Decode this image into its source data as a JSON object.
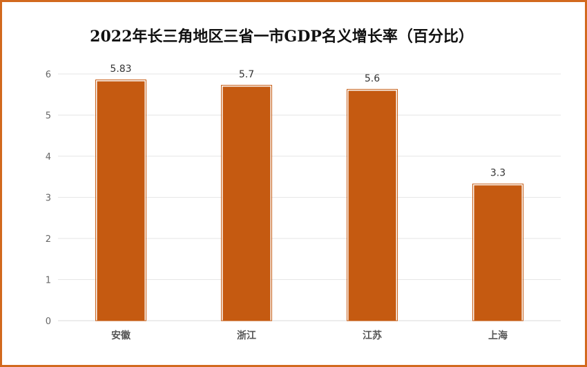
{
  "chart_data": {
    "type": "bar",
    "title": "2022年长三角地区三省一市GDP名义增长率（百分比）",
    "categories": [
      "安徽",
      "浙江",
      "江苏",
      "上海"
    ],
    "values": [
      5.83,
      5.7,
      5.6,
      3.3
    ],
    "data_labels": [
      "5.83",
      "5.7",
      "5.6",
      "3.3"
    ],
    "y_ticks": [
      0,
      1,
      2,
      3,
      4,
      5,
      6
    ],
    "ylim": [
      0,
      6
    ],
    "grid": true,
    "legend": "none",
    "bar_color": "#c55a11",
    "frame_color": "#d2691e"
  }
}
